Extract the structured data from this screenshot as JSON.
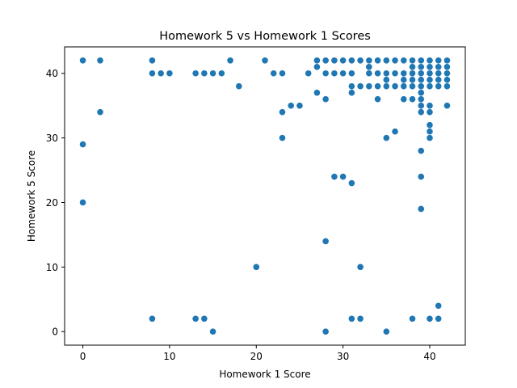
{
  "chart_data": {
    "type": "scatter",
    "title": "Homework 5 vs Homework 1 Scores",
    "xlabel": "Homework 1 Score",
    "ylabel": "Homework 5 Score",
    "xlim": [
      -2.1,
      44.1
    ],
    "ylim": [
      -2.1,
      44.1
    ],
    "xticks": [
      0,
      10,
      20,
      30,
      40
    ],
    "yticks": [
      0,
      10,
      20,
      30,
      40
    ],
    "grid": false,
    "marker_color": "#1f77b4",
    "points": [
      [
        0,
        42
      ],
      [
        0,
        29
      ],
      [
        0,
        20
      ],
      [
        2,
        42
      ],
      [
        2,
        34
      ],
      [
        8,
        42
      ],
      [
        8,
        40
      ],
      [
        8,
        2
      ],
      [
        9,
        40
      ],
      [
        10,
        40
      ],
      [
        13,
        40
      ],
      [
        13,
        2
      ],
      [
        14,
        40
      ],
      [
        14,
        2
      ],
      [
        15,
        40
      ],
      [
        15,
        0
      ],
      [
        16,
        40
      ],
      [
        17,
        42
      ],
      [
        18,
        38
      ],
      [
        20,
        10
      ],
      [
        21,
        42
      ],
      [
        22,
        40
      ],
      [
        23,
        40
      ],
      [
        23,
        34
      ],
      [
        23,
        30
      ],
      [
        24,
        35
      ],
      [
        25,
        35
      ],
      [
        26,
        40
      ],
      [
        27,
        42
      ],
      [
        27,
        41
      ],
      [
        27,
        37
      ],
      [
        28,
        42
      ],
      [
        28,
        40
      ],
      [
        28,
        36
      ],
      [
        28,
        14
      ],
      [
        28,
        0
      ],
      [
        29,
        42
      ],
      [
        29,
        40
      ],
      [
        29,
        24
      ],
      [
        30,
        42
      ],
      [
        30,
        40
      ],
      [
        30,
        24
      ],
      [
        31,
        42
      ],
      [
        31,
        40
      ],
      [
        31,
        38
      ],
      [
        31,
        37
      ],
      [
        31,
        23
      ],
      [
        31,
        2
      ],
      [
        32,
        42
      ],
      [
        32,
        38
      ],
      [
        32,
        10
      ],
      [
        32,
        2
      ],
      [
        33,
        42
      ],
      [
        33,
        41
      ],
      [
        33,
        40
      ],
      [
        33,
        38
      ],
      [
        34,
        42
      ],
      [
        34,
        40
      ],
      [
        34,
        38
      ],
      [
        34,
        36
      ],
      [
        35,
        42
      ],
      [
        35,
        40
      ],
      [
        35,
        39
      ],
      [
        35,
        38
      ],
      [
        35,
        30
      ],
      [
        35,
        0
      ],
      [
        36,
        42
      ],
      [
        36,
        40
      ],
      [
        36,
        38
      ],
      [
        36,
        31
      ],
      [
        37,
        42
      ],
      [
        37,
        40
      ],
      [
        37,
        39
      ],
      [
        37,
        38
      ],
      [
        37,
        36
      ],
      [
        38,
        42
      ],
      [
        38,
        41
      ],
      [
        38,
        40
      ],
      [
        38,
        39
      ],
      [
        38,
        38
      ],
      [
        38,
        36
      ],
      [
        38,
        2
      ],
      [
        39,
        42
      ],
      [
        39,
        41
      ],
      [
        39,
        40
      ],
      [
        39,
        39
      ],
      [
        39,
        38
      ],
      [
        39,
        37
      ],
      [
        39,
        36
      ],
      [
        39,
        35
      ],
      [
        39,
        34
      ],
      [
        39,
        28
      ],
      [
        39,
        24
      ],
      [
        39,
        19
      ],
      [
        40,
        42
      ],
      [
        40,
        41
      ],
      [
        40,
        40
      ],
      [
        40,
        39
      ],
      [
        40,
        38
      ],
      [
        40,
        35
      ],
      [
        40,
        34
      ],
      [
        40,
        32
      ],
      [
        40,
        31
      ],
      [
        40,
        30
      ],
      [
        40,
        2
      ],
      [
        41,
        42
      ],
      [
        41,
        41
      ],
      [
        41,
        40
      ],
      [
        41,
        39
      ],
      [
        41,
        38
      ],
      [
        41,
        4
      ],
      [
        41,
        2
      ],
      [
        42,
        42
      ],
      [
        42,
        41
      ],
      [
        42,
        40
      ],
      [
        42,
        39
      ],
      [
        42,
        38
      ],
      [
        42,
        35
      ]
    ]
  }
}
